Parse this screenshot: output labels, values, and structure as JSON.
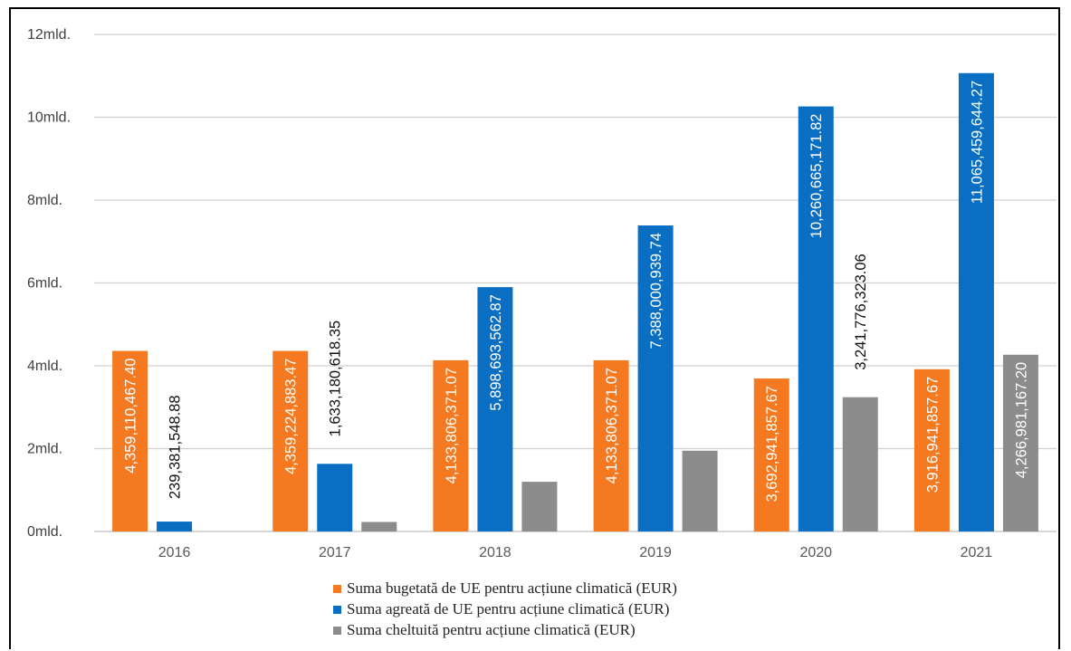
{
  "chart_data": {
    "type": "bar",
    "categories": [
      "2016",
      "2017",
      "2018",
      "2019",
      "2020",
      "2021"
    ],
    "series": [
      {
        "name": "Suma bugetată de UE pentru acțiune climatică (EUR)",
        "color": "#f47920",
        "values": [
          4359110467.4,
          4359224883.47,
          4133806371.07,
          4133806371.07,
          3692941857.67,
          3916941857.67
        ],
        "labels": [
          "4,359,110,467.40",
          "4,359,224,883.47",
          "4,133,806,371.07",
          "4,133,806,371.07",
          "3,692,941,857.67",
          "3,916,941,857.67"
        ]
      },
      {
        "name": "Suma agreată de UE pentru acțiune climatică (EUR)",
        "color": "#0a6fc2",
        "values": [
          239381548.88,
          1633180618.35,
          5898693562.87,
          7388000939.74,
          10260665171.82,
          11065459644.27
        ],
        "labels": [
          "239,381,548.88",
          "1,633,180,618.35",
          "5,898,693,562.87",
          "7,388,000,939.74",
          "10,260,665,171.82",
          "11,065,459,644.27"
        ]
      },
      {
        "name": "Suma cheltuită pentru acțiune climatică (EUR)",
        "color": "#8c8c8c",
        "values": [
          0,
          230000000,
          1200000000,
          1950000000,
          3241776323.06,
          4266981167.2
        ],
        "labels": [
          "",
          "",
          "",
          "",
          "3,241,776,323.06",
          "4,266,981,167.20"
        ]
      }
    ],
    "yticks": [
      {
        "value": 0,
        "label": "0mld."
      },
      {
        "value": 2000000000,
        "label": "2mld."
      },
      {
        "value": 4000000000,
        "label": "4mld."
      },
      {
        "value": 6000000000,
        "label": "6mld."
      },
      {
        "value": 8000000000,
        "label": "8mld."
      },
      {
        "value": 10000000000,
        "label": "10mld."
      },
      {
        "value": 12000000000,
        "label": "12mld."
      }
    ],
    "ylim": [
      0,
      12000000000
    ],
    "title": "",
    "xlabel": "",
    "ylabel": "",
    "grid": true,
    "legend_position": "bottom"
  }
}
